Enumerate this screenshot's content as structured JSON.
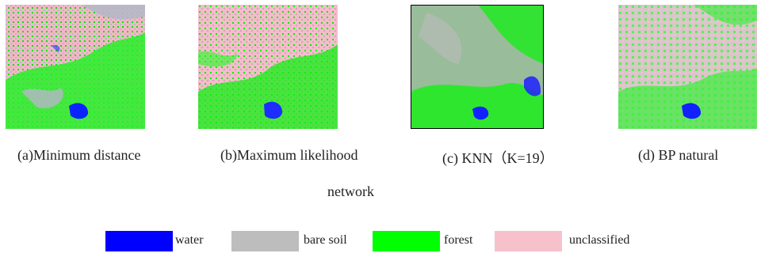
{
  "figure": {
    "panels": [
      {
        "id": "a",
        "caption": "(a)Minimum distance"
      },
      {
        "id": "b",
        "caption": "(b)Maximum likelihood"
      },
      {
        "id": "c",
        "caption": "(c) KNN（K=19）"
      },
      {
        "id": "d",
        "caption": "(d) BP natural"
      }
    ],
    "caption_wrap": "network"
  },
  "legend": [
    {
      "label": "water",
      "color": "#0000ff"
    },
    {
      "label": "bare soil",
      "color": "#bdbdbd"
    },
    {
      "label": "forest",
      "color": "#00ff00"
    },
    {
      "label": "unclassified",
      "color": "#f7c1cb"
    }
  ]
}
